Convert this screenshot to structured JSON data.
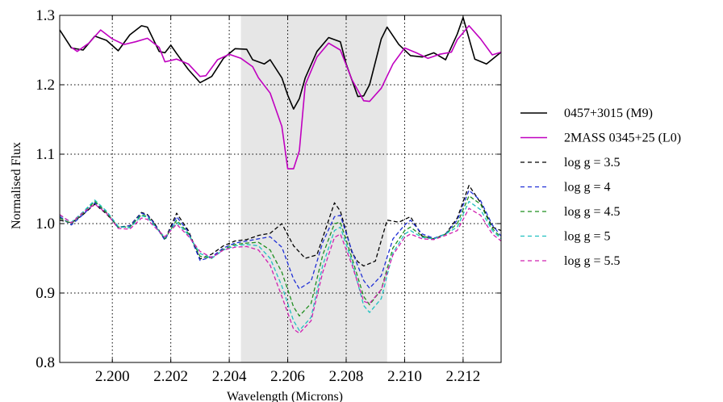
{
  "chart_data": {
    "type": "line",
    "xlabel": "Wavelength (Microns)",
    "ylabel": "Normalised Flux",
    "xlim": [
      2.1982,
      2.2133
    ],
    "ylim": [
      0.8,
      1.3
    ],
    "x_ticks": [
      2.2,
      2.202,
      2.204,
      2.206,
      2.208,
      2.21,
      2.212
    ],
    "x_tick_labels": [
      "2.200",
      "2.202",
      "2.204",
      "2.206",
      "2.208",
      "2.210",
      "2.212"
    ],
    "y_ticks": [
      0.8,
      0.9,
      1.0,
      1.1,
      1.2,
      1.3
    ],
    "y_tick_labels": [
      "0.8",
      "0.9",
      "1.0",
      "1.1",
      "1.2",
      "1.3"
    ],
    "grid": true,
    "legend_position": "right",
    "shaded_region": {
      "x0": 2.2044,
      "x1": 2.2094,
      "color": "#e6e6e6"
    },
    "series": [
      {
        "name": "0457+3015 (M9)",
        "color": "#000000",
        "style": "solid",
        "x": [
          2.1982,
          2.1986,
          2.199,
          2.1994,
          2.1998,
          2.2002,
          2.2006,
          2.201,
          2.2012,
          2.2016,
          2.2018,
          2.202,
          2.2022,
          2.2026,
          2.203,
          2.2034,
          2.2038,
          2.2042,
          2.2046,
          2.2048,
          2.2052,
          2.2054,
          2.2058,
          2.206,
          2.2062,
          2.2064,
          2.2066,
          2.207,
          2.2074,
          2.2078,
          2.208,
          2.2084,
          2.2086,
          2.2088,
          2.2092,
          2.2094,
          2.2098,
          2.2102,
          2.2106,
          2.211,
          2.2114,
          2.2118,
          2.212,
          2.2124,
          2.2128,
          2.2133
        ],
        "y": [
          1.279,
          1.253,
          1.25,
          1.27,
          1.264,
          1.249,
          1.272,
          1.285,
          1.283,
          1.248,
          1.246,
          1.257,
          1.245,
          1.222,
          1.203,
          1.212,
          1.238,
          1.252,
          1.251,
          1.236,
          1.23,
          1.236,
          1.21,
          1.185,
          1.165,
          1.18,
          1.21,
          1.248,
          1.268,
          1.262,
          1.23,
          1.183,
          1.184,
          1.2,
          1.266,
          1.283,
          1.258,
          1.242,
          1.24,
          1.246,
          1.236,
          1.273,
          1.297,
          1.237,
          1.23,
          1.247
        ]
      },
      {
        "name": "2MASS 0345+25 (L0)",
        "color": "#c000c0",
        "style": "solid",
        "x": [
          2.1986,
          2.1988,
          2.1992,
          2.1996,
          2.2,
          2.2004,
          2.2008,
          2.2012,
          2.2016,
          2.2018,
          2.2022,
          2.2026,
          2.203,
          2.2032,
          2.2036,
          2.204,
          2.2044,
          2.2048,
          2.205,
          2.2054,
          2.2058,
          2.206,
          2.2062,
          2.2064,
          2.2066,
          2.207,
          2.2074,
          2.2078,
          2.2082,
          2.2086,
          2.2088,
          2.2092,
          2.2096,
          2.21,
          2.2104,
          2.2108,
          2.2112,
          2.2116,
          2.2118,
          2.2122,
          2.2126,
          2.213,
          2.2133
        ],
        "y": [
          1.254,
          1.248,
          1.26,
          1.279,
          1.266,
          1.258,
          1.262,
          1.267,
          1.254,
          1.233,
          1.237,
          1.23,
          1.212,
          1.213,
          1.236,
          1.244,
          1.238,
          1.226,
          1.21,
          1.188,
          1.14,
          1.079,
          1.079,
          1.105,
          1.2,
          1.24,
          1.26,
          1.25,
          1.207,
          1.177,
          1.176,
          1.195,
          1.23,
          1.253,
          1.246,
          1.238,
          1.244,
          1.247,
          1.265,
          1.285,
          1.266,
          1.243,
          1.247
        ]
      },
      {
        "name": "log g = 3.5",
        "color": "#000000",
        "style": "dashed",
        "x": [
          2.1982,
          2.1986,
          2.199,
          2.1994,
          2.1998,
          2.2002,
          2.2006,
          2.201,
          2.2012,
          2.2014,
          2.2018,
          2.2022,
          2.2026,
          2.203,
          2.2034,
          2.2038,
          2.2042,
          2.2046,
          2.205,
          2.2054,
          2.2058,
          2.2062,
          2.2066,
          2.207,
          2.2074,
          2.2076,
          2.2078,
          2.2082,
          2.2084,
          2.2086,
          2.209,
          2.2094,
          2.2098,
          2.2102,
          2.2106,
          2.211,
          2.2114,
          2.2118,
          2.2122,
          2.2126,
          2.213,
          2.2133
        ],
        "y": [
          1.005,
          1.001,
          1.013,
          1.028,
          1.014,
          0.995,
          0.997,
          1.016,
          1.013,
          1.003,
          0.977,
          1.015,
          0.99,
          0.949,
          0.956,
          0.968,
          0.975,
          0.977,
          0.983,
          0.986,
          1.0,
          0.968,
          0.95,
          0.955,
          1.005,
          1.03,
          1.018,
          0.958,
          0.945,
          0.939,
          0.946,
          1.005,
          1.002,
          1.01,
          0.982,
          0.978,
          0.985,
          1.008,
          1.055,
          1.03,
          0.995,
          0.99
        ]
      },
      {
        "name": "log g = 4",
        "color": "#1f2fd6",
        "style": "dashed",
        "x": [
          2.1982,
          2.1986,
          2.199,
          2.1994,
          2.1998,
          2.2002,
          2.2006,
          2.201,
          2.2012,
          2.2014,
          2.2018,
          2.2022,
          2.2026,
          2.203,
          2.2034,
          2.2038,
          2.2042,
          2.2046,
          2.205,
          2.2054,
          2.2058,
          2.2062,
          2.2064,
          2.2068,
          2.2072,
          2.2076,
          2.2078,
          2.2082,
          2.2086,
          2.2088,
          2.2092,
          2.2096,
          2.21,
          2.2102,
          2.2106,
          2.211,
          2.2114,
          2.2118,
          2.2122,
          2.2126,
          2.213,
          2.2133
        ],
        "y": [
          1.01,
          0.998,
          1.013,
          1.03,
          1.016,
          0.994,
          0.997,
          1.015,
          1.012,
          1.002,
          0.976,
          1.01,
          0.988,
          0.947,
          0.952,
          0.965,
          0.972,
          0.975,
          0.978,
          0.981,
          0.966,
          0.92,
          0.906,
          0.917,
          0.973,
          1.01,
          1.012,
          0.96,
          0.918,
          0.907,
          0.925,
          0.978,
          0.998,
          1.005,
          0.985,
          0.979,
          0.985,
          1.005,
          1.048,
          1.033,
          0.998,
          0.982
        ]
      },
      {
        "name": "log g = 4.5",
        "color": "#1f8f1f",
        "style": "dashed",
        "x": [
          2.1982,
          2.1986,
          2.199,
          2.1994,
          2.1998,
          2.2002,
          2.2006,
          2.201,
          2.2012,
          2.2014,
          2.2018,
          2.2022,
          2.2026,
          2.203,
          2.2034,
          2.2038,
          2.2042,
          2.2046,
          2.205,
          2.2054,
          2.2058,
          2.2062,
          2.2064,
          2.2068,
          2.2072,
          2.2076,
          2.2078,
          2.2082,
          2.2086,
          2.2088,
          2.2092,
          2.2096,
          2.21,
          2.2102,
          2.2106,
          2.211,
          2.2114,
          2.2118,
          2.2122,
          2.2126,
          2.213,
          2.2133
        ],
        "y": [
          1.008,
          1.0,
          1.015,
          1.032,
          1.016,
          0.995,
          0.995,
          1.013,
          1.01,
          1.0,
          0.978,
          1.005,
          0.986,
          0.953,
          0.95,
          0.963,
          0.97,
          0.972,
          0.973,
          0.962,
          0.93,
          0.88,
          0.867,
          0.885,
          0.955,
          1.0,
          1.002,
          0.95,
          0.895,
          0.883,
          0.905,
          0.965,
          0.99,
          0.995,
          0.982,
          0.978,
          0.985,
          1.0,
          1.04,
          1.028,
          0.993,
          0.98
        ]
      },
      {
        "name": "log g = 5",
        "color": "#20c0c0",
        "style": "dashed",
        "x": [
          2.1982,
          2.1986,
          2.199,
          2.1994,
          2.1998,
          2.2002,
          2.2006,
          2.201,
          2.2012,
          2.2014,
          2.2018,
          2.2022,
          2.2026,
          2.203,
          2.2034,
          2.2038,
          2.2042,
          2.2046,
          2.205,
          2.2054,
          2.2058,
          2.2062,
          2.2064,
          2.2068,
          2.2072,
          2.2076,
          2.2078,
          2.2082,
          2.2086,
          2.2088,
          2.2092,
          2.2096,
          2.21,
          2.2102,
          2.2106,
          2.211,
          2.2114,
          2.2118,
          2.2122,
          2.2126,
          2.213,
          2.2133
        ],
        "y": [
          1.012,
          1.002,
          1.017,
          1.034,
          1.018,
          0.996,
          0.994,
          1.011,
          1.009,
          0.999,
          0.98,
          1.002,
          0.984,
          0.957,
          0.95,
          0.962,
          0.968,
          0.97,
          0.968,
          0.95,
          0.91,
          0.86,
          0.846,
          0.865,
          0.94,
          0.99,
          0.995,
          0.945,
          0.882,
          0.872,
          0.892,
          0.958,
          0.985,
          0.99,
          0.98,
          0.978,
          0.985,
          0.995,
          1.032,
          1.02,
          0.99,
          0.978
        ]
      },
      {
        "name": "log g = 5.5",
        "color": "#d020b0",
        "style": "dashed",
        "x": [
          2.1982,
          2.1986,
          2.199,
          2.1994,
          2.1998,
          2.2002,
          2.2006,
          2.201,
          2.2012,
          2.2014,
          2.2018,
          2.2022,
          2.2026,
          2.203,
          2.2034,
          2.2038,
          2.2042,
          2.2046,
          2.205,
          2.2054,
          2.2058,
          2.2062,
          2.2064,
          2.2068,
          2.2072,
          2.2076,
          2.2078,
          2.2082,
          2.2086,
          2.2088,
          2.2092,
          2.2096,
          2.21,
          2.2102,
          2.2106,
          2.211,
          2.2114,
          2.2118,
          2.2122,
          2.2126,
          2.213,
          2.2133
        ],
        "y": [
          1.013,
          1.001,
          1.016,
          1.028,
          1.015,
          0.993,
          0.992,
          1.008,
          1.006,
          0.997,
          0.981,
          0.999,
          0.982,
          0.96,
          0.951,
          0.962,
          0.966,
          0.967,
          0.962,
          0.94,
          0.895,
          0.848,
          0.842,
          0.86,
          0.93,
          0.98,
          0.985,
          0.94,
          0.888,
          0.885,
          0.905,
          0.955,
          0.98,
          0.985,
          0.978,
          0.977,
          0.983,
          0.99,
          1.022,
          1.012,
          0.985,
          0.975
        ]
      }
    ]
  }
}
